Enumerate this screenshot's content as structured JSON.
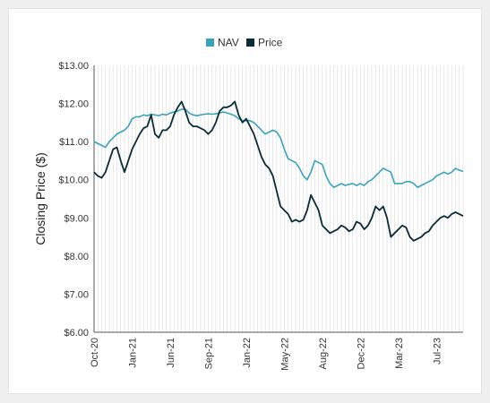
{
  "chart_data": {
    "type": "line",
    "title": "",
    "xlabel": "",
    "ylabel": "Closing Price ($)",
    "ylim": [
      6,
      13
    ],
    "yticks": [
      "$6.00",
      "$7.00",
      "$8.00",
      "$9.00",
      "$10.00",
      "$11.00",
      "$12.00",
      "$13.00"
    ],
    "xticks": [
      "Oct-20",
      "Jan-21",
      "Jun-21",
      "Sep-21",
      "Jan-22",
      "May-22",
      "Aug-22",
      "Dec-22",
      "Mar-23",
      "Jul-23"
    ],
    "xticks_pos": [
      0,
      10,
      20,
      30,
      40,
      50,
      60,
      70,
      80,
      90
    ],
    "xlim": [
      0,
      97
    ],
    "grid": "vertical",
    "legend_position": "top",
    "colors": {
      "NAV": "#3ba3b9",
      "Price": "#0b2b35"
    },
    "series": [
      {
        "name": "NAV",
        "values": [
          11.0,
          10.95,
          10.9,
          10.85,
          11.0,
          11.1,
          11.2,
          11.25,
          11.3,
          11.4,
          11.6,
          11.65,
          11.65,
          11.7,
          11.68,
          11.72,
          11.7,
          11.68,
          11.72,
          11.7,
          11.75,
          11.78,
          11.8,
          11.85,
          11.85,
          11.75,
          11.7,
          11.68,
          11.7,
          11.72,
          11.73,
          11.72,
          11.73,
          11.75,
          11.78,
          11.75,
          11.72,
          11.68,
          11.6,
          11.55,
          11.55,
          11.55,
          11.5,
          11.4,
          11.3,
          11.2,
          11.25,
          11.3,
          11.25,
          11.1,
          10.8,
          10.55,
          10.5,
          10.45,
          10.3,
          10.1,
          10.0,
          10.2,
          10.5,
          10.45,
          10.4,
          10.1,
          9.9,
          9.8,
          9.85,
          9.9,
          9.85,
          9.88,
          9.9,
          9.85,
          9.9,
          9.85,
          9.95,
          10.0,
          10.1,
          10.2,
          10.3,
          10.25,
          10.2,
          9.9,
          9.9,
          9.9,
          9.95,
          9.95,
          9.9,
          9.8,
          9.85,
          9.9,
          9.95,
          10.0,
          10.1,
          10.15,
          10.2,
          10.15,
          10.2,
          10.3,
          10.25,
          10.22
        ]
      },
      {
        "name": "Price",
        "values": [
          10.2,
          10.1,
          10.05,
          10.2,
          10.5,
          10.8,
          10.85,
          10.5,
          10.2,
          10.5,
          10.8,
          11.0,
          11.2,
          11.35,
          11.4,
          11.7,
          11.2,
          11.1,
          11.3,
          11.3,
          11.4,
          11.7,
          11.9,
          12.05,
          11.8,
          11.5,
          11.4,
          11.4,
          11.35,
          11.3,
          11.2,
          11.3,
          11.5,
          11.8,
          11.9,
          11.9,
          11.95,
          12.05,
          11.7,
          11.5,
          11.6,
          11.4,
          11.2,
          10.9,
          10.6,
          10.4,
          10.3,
          10.1,
          9.7,
          9.3,
          9.2,
          9.1,
          8.9,
          8.95,
          8.9,
          8.95,
          9.2,
          9.6,
          9.4,
          9.2,
          8.8,
          8.7,
          8.6,
          8.65,
          8.7,
          8.8,
          8.75,
          8.65,
          8.7,
          8.9,
          8.85,
          8.7,
          8.8,
          9.0,
          9.3,
          9.2,
          9.3,
          9.0,
          8.5,
          8.6,
          8.7,
          8.8,
          8.75,
          8.5,
          8.4,
          8.45,
          8.5,
          8.6,
          8.65,
          8.8,
          8.9,
          9.0,
          9.05,
          9.0,
          9.1,
          9.15,
          9.1,
          9.05
        ]
      }
    ]
  }
}
